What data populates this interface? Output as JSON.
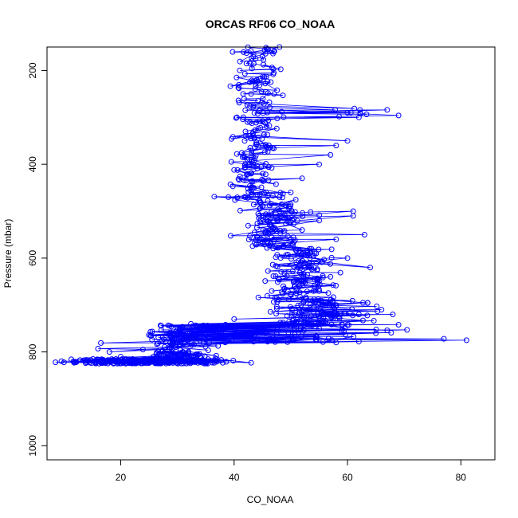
{
  "chart_data": {
    "type": "scatter",
    "title": "ORCAS RF06 CO_NOAA",
    "xlabel": "CO_NOAA",
    "ylabel": "Pressure (mbar)",
    "xlim": [
      7,
      86
    ],
    "ylim": [
      1030,
      150
    ],
    "y_reversed": true,
    "grid": false,
    "legend": "none",
    "marker": "open-circle",
    "connected": true,
    "color": "#0000ff",
    "x_ticks": [
      20,
      40,
      60,
      80
    ],
    "y_ticks": [
      200,
      400,
      600,
      800,
      1000
    ],
    "clusters": [
      {
        "p_range": [
          150,
          470
        ],
        "x_center": 44,
        "x_spread": 4,
        "count": 190
      },
      {
        "p_range": [
          280,
          300
        ],
        "x_center": 60,
        "x_spread": 8,
        "count": 8
      },
      {
        "p_range": [
          470,
          580
        ],
        "x_center": 47,
        "x_spread": 6,
        "count": 110
      },
      {
        "p_range": [
          580,
          690
        ],
        "x_center": 52,
        "x_spread": 6,
        "count": 130
      },
      {
        "p_range": [
          690,
          745
        ],
        "x_center": 54,
        "x_spread": 9,
        "count": 110
      },
      {
        "p_range": [
          745,
          780
        ],
        "x_center": 50,
        "x_spread": 14,
        "count": 50
      },
      {
        "p_range": [
          740,
          815
        ],
        "x_center": 31,
        "x_spread": 6,
        "count": 160
      },
      {
        "p_range": [
          815,
          825
        ],
        "x_center": 25,
        "x_spread": 13,
        "count": 260
      }
    ],
    "points": [
      {
        "x": 8.5,
        "y": 822
      },
      {
        "x": 10,
        "y": 822
      },
      {
        "x": 12,
        "y": 822
      },
      {
        "x": 14,
        "y": 822
      },
      {
        "x": 16.5,
        "y": 781
      },
      {
        "x": 16,
        "y": 793
      },
      {
        "x": 18,
        "y": 800
      },
      {
        "x": 20,
        "y": 810
      },
      {
        "x": 29,
        "y": 767
      },
      {
        "x": 30,
        "y": 748
      },
      {
        "x": 40,
        "y": 730
      },
      {
        "x": 41,
        "y": 750
      },
      {
        "x": 43,
        "y": 823
      },
      {
        "x": 38,
        "y": 823
      },
      {
        "x": 35,
        "y": 822
      },
      {
        "x": 36.5,
        "y": 469
      },
      {
        "x": 39,
        "y": 470
      },
      {
        "x": 40,
        "y": 412
      },
      {
        "x": 40.5,
        "y": 300
      },
      {
        "x": 41,
        "y": 200
      },
      {
        "x": 43,
        "y": 250
      },
      {
        "x": 45,
        "y": 170
      },
      {
        "x": 46,
        "y": 155
      },
      {
        "x": 47,
        "y": 160
      },
      {
        "x": 48,
        "y": 150
      },
      {
        "x": 44,
        "y": 220
      },
      {
        "x": 42,
        "y": 330
      },
      {
        "x": 41.5,
        "y": 385
      },
      {
        "x": 43,
        "y": 420
      },
      {
        "x": 46,
        "y": 510
      },
      {
        "x": 48,
        "y": 500
      },
      {
        "x": 50,
        "y": 560
      },
      {
        "x": 52,
        "y": 540
      },
      {
        "x": 55,
        "y": 520
      },
      {
        "x": 58,
        "y": 560
      },
      {
        "x": 61,
        "y": 500
      },
      {
        "x": 61,
        "y": 510
      },
      {
        "x": 63,
        "y": 550
      },
      {
        "x": 64,
        "y": 620
      },
      {
        "x": 60,
        "y": 600
      },
      {
        "x": 57,
        "y": 640
      },
      {
        "x": 55,
        "y": 670
      },
      {
        "x": 58,
        "y": 700
      },
      {
        "x": 62,
        "y": 720
      },
      {
        "x": 66,
        "y": 710
      },
      {
        "x": 68,
        "y": 720
      },
      {
        "x": 69,
        "y": 742
      },
      {
        "x": 65,
        "y": 760
      },
      {
        "x": 67,
        "y": 754
      },
      {
        "x": 70.5,
        "y": 753
      },
      {
        "x": 77,
        "y": 772
      },
      {
        "x": 81,
        "y": 775
      },
      {
        "x": 62,
        "y": 778
      },
      {
        "x": 58,
        "y": 780
      },
      {
        "x": 67,
        "y": 284
      },
      {
        "x": 69,
        "y": 296
      },
      {
        "x": 62,
        "y": 300
      },
      {
        "x": 60,
        "y": 290
      },
      {
        "x": 58,
        "y": 360
      },
      {
        "x": 60,
        "y": 350
      },
      {
        "x": 57,
        "y": 380
      },
      {
        "x": 55,
        "y": 400
      },
      {
        "x": 52,
        "y": 430
      },
      {
        "x": 50,
        "y": 460
      },
      {
        "x": 48,
        "y": 470
      }
    ]
  }
}
